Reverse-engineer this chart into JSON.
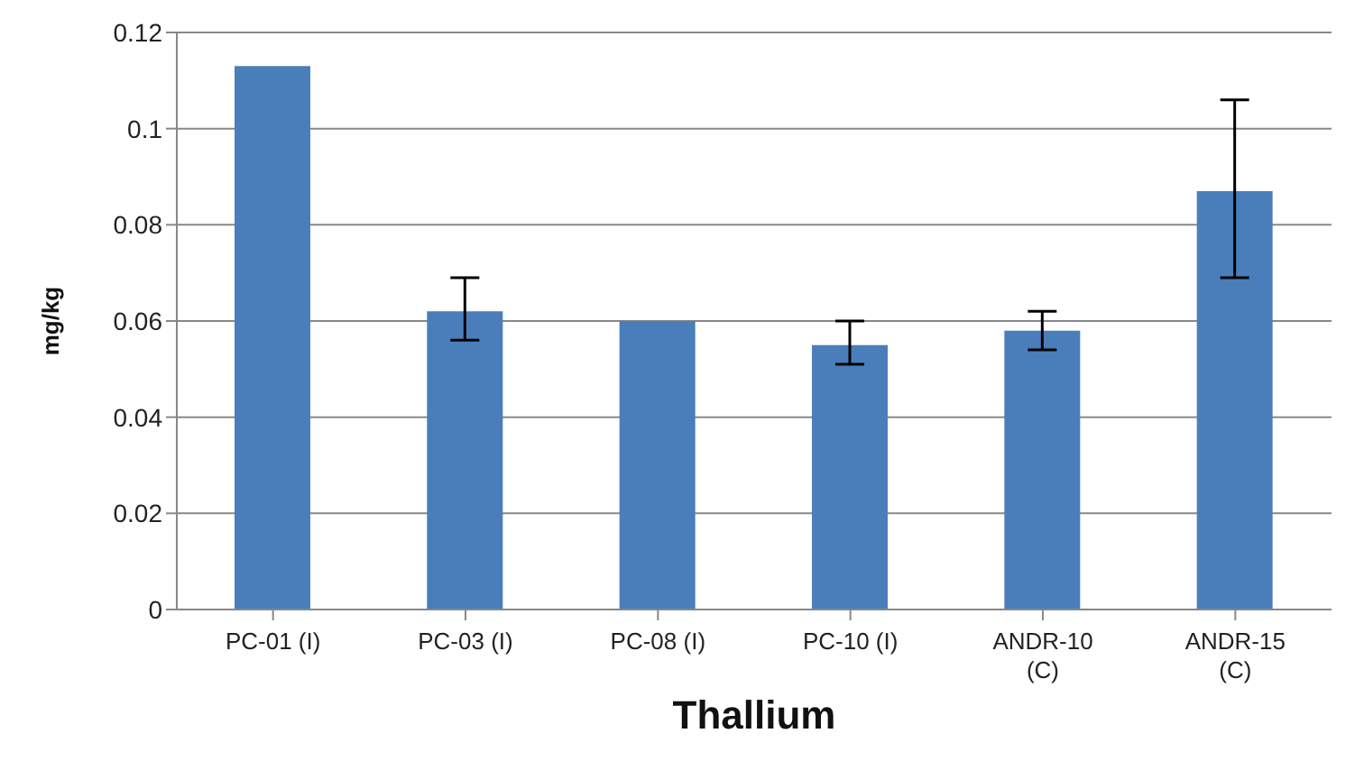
{
  "chart_data": {
    "type": "bar",
    "xlabel": "Thallium",
    "ylabel": "mg/kg",
    "categories": [
      "PC-01 (I)",
      "PC-03 (I)",
      "PC-08 (I)",
      "PC-10 (I)",
      "ANDR-10 (C)",
      "ANDR-15 (C)"
    ],
    "values": [
      0.113,
      0.062,
      0.06,
      0.055,
      0.058,
      0.087
    ],
    "errors": [
      null,
      [
        0.056,
        0.069
      ],
      null,
      [
        0.051,
        0.06
      ],
      [
        0.054,
        0.062
      ],
      [
        0.069,
        0.106
      ]
    ],
    "color": "#4a7ebb",
    "ylim": [
      0,
      0.12
    ],
    "yticks": [
      0,
      0.02,
      0.04,
      0.06,
      0.08,
      0.1,
      0.12
    ],
    "grid": "y"
  }
}
